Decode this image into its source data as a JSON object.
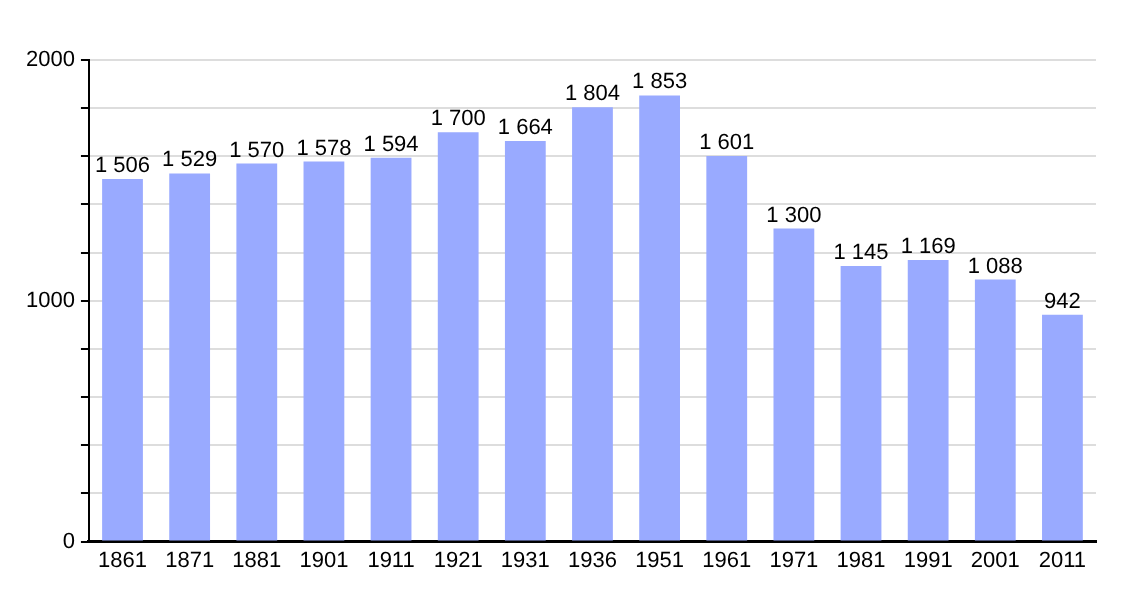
{
  "chart_data": {
    "type": "bar",
    "categories": [
      "1861",
      "1871",
      "1881",
      "1901",
      "1911",
      "1921",
      "1931",
      "1936",
      "1951",
      "1961",
      "1971",
      "1981",
      "1991",
      "2001",
      "2011"
    ],
    "values": [
      1506,
      1529,
      1570,
      1578,
      1594,
      1700,
      1664,
      1804,
      1853,
      1601,
      1300,
      1145,
      1169,
      1088,
      942
    ],
    "value_labels": [
      "1 506",
      "1 529",
      "1 570",
      "1 578",
      "1 594",
      "1 700",
      "1 664",
      "1 804",
      "1 853",
      "1 601",
      "1 300",
      "1 145",
      "1 169",
      "1 088",
      "942"
    ],
    "color": "#99aaff",
    "ylim": [
      0,
      2000
    ],
    "yticks": [
      0,
      {
        "value": 200,
        "label": null
      },
      {
        "value": 400,
        "label": null
      },
      {
        "value": 600,
        "label": null
      },
      {
        "value": 800,
        "label": null
      },
      1000,
      {
        "value": 1200,
        "label": null
      },
      {
        "value": 1400,
        "label": null
      },
      {
        "value": 1600,
        "label": null
      },
      {
        "value": 1800,
        "label": null
      },
      2000
    ],
    "grid": "y",
    "legend": false
  }
}
